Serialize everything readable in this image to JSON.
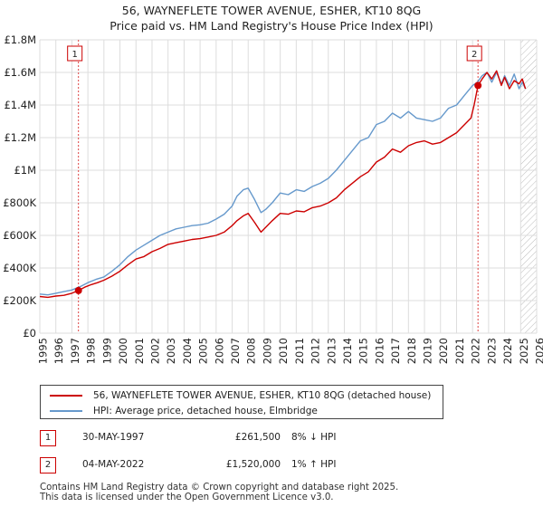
{
  "chart_data": {
    "type": "line",
    "title": "56, WAYNEFLETE TOWER AVENUE, ESHER, KT10 8QG",
    "subtitle": "Price paid vs. HM Land Registry's House Price Index (HPI)",
    "xlim": [
      1995,
      2026
    ],
    "ylim": [
      0,
      1800000
    ],
    "x_ticks": [
      1995,
      1996,
      1997,
      1998,
      1999,
      2000,
      2001,
      2002,
      2003,
      2004,
      2005,
      2006,
      2007,
      2008,
      2009,
      2010,
      2011,
      2012,
      2013,
      2014,
      2015,
      2016,
      2017,
      2018,
      2019,
      2020,
      2021,
      2022,
      2023,
      2024,
      2025,
      2026
    ],
    "y_ticks": [
      {
        "value": 0,
        "label": "£0"
      },
      {
        "value": 200000,
        "label": "£200K"
      },
      {
        "value": 400000,
        "label": "£400K"
      },
      {
        "value": 600000,
        "label": "£600K"
      },
      {
        "value": 800000,
        "label": "£800K"
      },
      {
        "value": 1000000,
        "label": "£1M"
      },
      {
        "value": 1200000,
        "label": "£1.2M"
      },
      {
        "value": 1400000,
        "label": "£1.4M"
      },
      {
        "value": 1600000,
        "label": "£1.6M"
      },
      {
        "value": 1800000,
        "label": "£1.8M"
      }
    ],
    "hatch_from": 2025.0,
    "series": [
      {
        "name": "56, WAYNEFLETE TOWER AVENUE, ESHER, KT10 8QG (detached house)",
        "color": "#cc0000",
        "x": [
          1995.0,
          1995.5,
          1996.0,
          1996.5,
          1997.0,
          1997.41,
          1997.8,
          1998.2,
          1998.6,
          1999.0,
          1999.5,
          2000.0,
          2000.5,
          2001.0,
          2001.5,
          2002.0,
          2002.5,
          2003.0,
          2003.5,
          2004.0,
          2004.5,
          2005.0,
          2005.5,
          2006.0,
          2006.5,
          2007.0,
          2007.3,
          2007.7,
          2008.0,
          2008.4,
          2008.8,
          2009.1,
          2009.5,
          2010.0,
          2010.5,
          2011.0,
          2011.5,
          2012.0,
          2012.5,
          2013.0,
          2013.5,
          2014.0,
          2014.5,
          2015.0,
          2015.5,
          2016.0,
          2016.5,
          2017.0,
          2017.5,
          2018.0,
          2018.5,
          2019.0,
          2019.5,
          2020.0,
          2020.5,
          2021.0,
          2021.5,
          2021.9,
          2022.1,
          2022.34,
          2022.6,
          2022.9,
          2023.2,
          2023.5,
          2023.8,
          2024.0,
          2024.3,
          2024.6,
          2024.9,
          2025.1,
          2025.3
        ],
        "y": [
          225000,
          220000,
          228000,
          232000,
          245000,
          261500,
          282000,
          298000,
          310000,
          325000,
          350000,
          380000,
          420000,
          455000,
          470000,
          500000,
          520000,
          545000,
          555000,
          565000,
          575000,
          580000,
          590000,
          600000,
          620000,
          660000,
          690000,
          720000,
          735000,
          680000,
          620000,
          650000,
          690000,
          735000,
          730000,
          750000,
          745000,
          770000,
          780000,
          800000,
          830000,
          880000,
          920000,
          960000,
          990000,
          1050000,
          1080000,
          1130000,
          1110000,
          1150000,
          1170000,
          1180000,
          1160000,
          1170000,
          1200000,
          1230000,
          1280000,
          1320000,
          1400000,
          1520000,
          1560000,
          1600000,
          1560000,
          1610000,
          1520000,
          1570000,
          1500000,
          1550000,
          1530000,
          1560000,
          1500000
        ]
      },
      {
        "name": "HPI: Average price, detached house, Elmbridge",
        "color": "#6699cc",
        "x": [
          1995.0,
          1995.5,
          1996.0,
          1996.5,
          1997.0,
          1997.5,
          1998.0,
          1998.5,
          1999.0,
          1999.5,
          2000.0,
          2000.5,
          2001.0,
          2001.5,
          2002.0,
          2002.5,
          2003.0,
          2003.5,
          2004.0,
          2004.5,
          2005.0,
          2005.5,
          2006.0,
          2006.5,
          2007.0,
          2007.3,
          2007.7,
          2008.0,
          2008.4,
          2008.8,
          2009.1,
          2009.5,
          2010.0,
          2010.5,
          2011.0,
          2011.5,
          2012.0,
          2012.5,
          2013.0,
          2013.5,
          2014.0,
          2014.5,
          2015.0,
          2015.5,
          2016.0,
          2016.5,
          2017.0,
          2017.5,
          2018.0,
          2018.5,
          2019.0,
          2019.5,
          2020.0,
          2020.5,
          2021.0,
          2021.5,
          2022.0,
          2022.3,
          2022.6,
          2022.9,
          2023.2,
          2023.5,
          2023.8,
          2024.0,
          2024.3,
          2024.6,
          2024.9,
          2025.1,
          2025.3
        ],
        "y": [
          240000,
          235000,
          245000,
          255000,
          265000,
          285000,
          310000,
          330000,
          345000,
          380000,
          420000,
          470000,
          510000,
          540000,
          570000,
          600000,
          620000,
          640000,
          650000,
          660000,
          665000,
          675000,
          700000,
          730000,
          780000,
          840000,
          880000,
          890000,
          820000,
          740000,
          760000,
          800000,
          860000,
          850000,
          880000,
          870000,
          900000,
          920000,
          950000,
          1000000,
          1060000,
          1120000,
          1180000,
          1200000,
          1280000,
          1300000,
          1350000,
          1320000,
          1360000,
          1320000,
          1310000,
          1300000,
          1320000,
          1380000,
          1400000,
          1460000,
          1520000,
          1540000,
          1580000,
          1600000,
          1540000,
          1600000,
          1530000,
          1580000,
          1520000,
          1590000,
          1500000,
          1540000,
          1500000
        ]
      }
    ],
    "markers": [
      {
        "label": "1",
        "x": 1997.41,
        "y": 261500
      },
      {
        "label": "2",
        "x": 2022.34,
        "y": 1520000
      }
    ]
  },
  "legend": {
    "property": "56, WAYNEFLETE TOWER AVENUE, ESHER, KT10 8QG (detached house)",
    "hpi": "HPI: Average price, detached house, Elmbridge"
  },
  "sales": [
    {
      "num": "1",
      "date": "30-MAY-1997",
      "price": "£261,500",
      "hpi": "8% ↓ HPI"
    },
    {
      "num": "2",
      "date": "04-MAY-2022",
      "price": "£1,520,000",
      "hpi": "1% ↑ HPI"
    }
  ],
  "footer": {
    "line1": "Contains HM Land Registry data © Crown copyright and database right 2025.",
    "line2": "This data is licensed under the Open Government Licence v3.0."
  }
}
